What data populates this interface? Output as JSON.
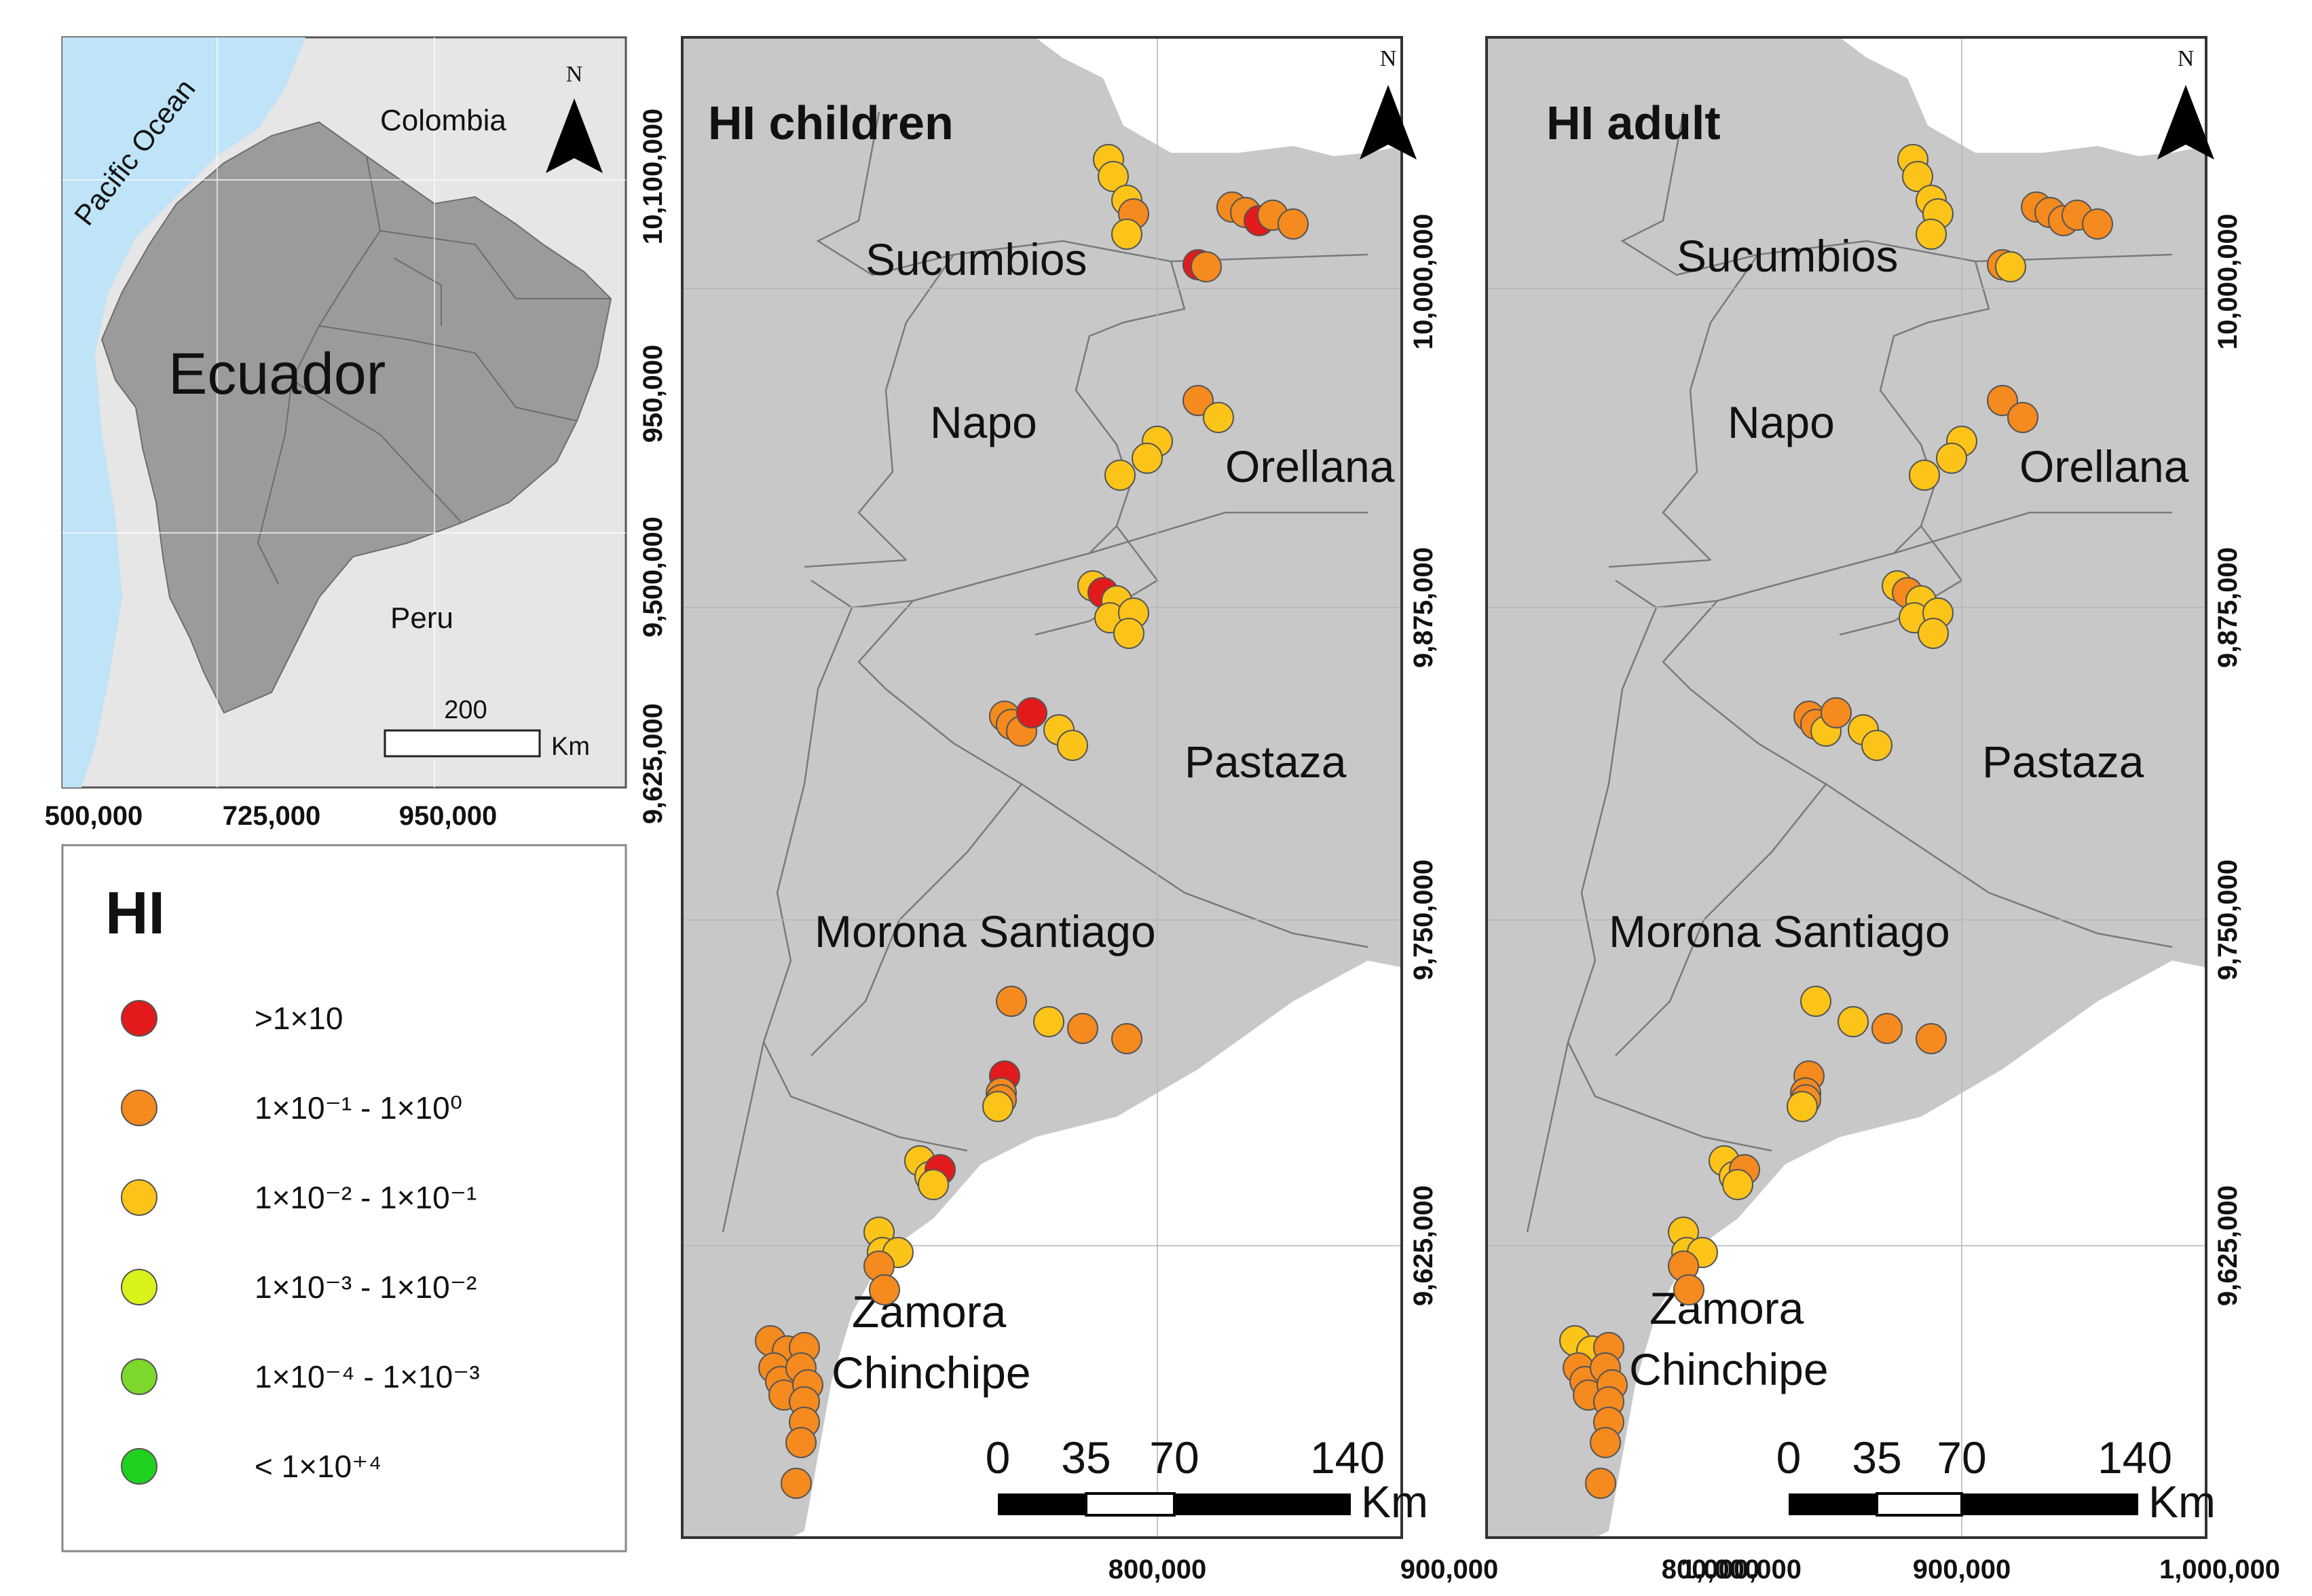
{
  "colors": {
    "ocean": "#bfe3f7",
    "land_light": "#e6e6e6",
    "land_ecuador": "#9b9b9b",
    "map_fill": "#c8c8c8",
    "red": "#e31a1c",
    "orange": "#f58a1f",
    "yellow": "#fcc419",
    "yellowgreen": "#d8f21a",
    "lightgreen": "#7cd82a",
    "green": "#1fd11f"
  },
  "icons": {
    "north_arrow": "north-arrow-icon"
  },
  "inset": {
    "ocean_label": "Pacific Ocean",
    "colombia_label": "Colombia",
    "ecuador_label": "Ecuador",
    "peru_label": "Peru",
    "north_letter": "N",
    "scale_value": "200",
    "scale_unit": "Km",
    "x_ticks": [
      "500,000",
      "725,000",
      "950,000"
    ],
    "y_ticks": [
      "10,100,000",
      "950,000",
      "9,500,000",
      "9,625,000"
    ]
  },
  "legend": {
    "title": "HI",
    "items": [
      {
        "label": ">1×10",
        "color": "red"
      },
      {
        "label": "1×10⁻¹ - 1×10⁰",
        "color": "orange"
      },
      {
        "label": "1×10⁻² - 1×10⁻¹",
        "color": "yellow"
      },
      {
        "label": "1×10⁻³ - 1×10⁻²",
        "color": "yellowgreen"
      },
      {
        "label": "1×10⁻⁴ - 1×10⁻³",
        "color": "lightgreen"
      },
      {
        "label": "< 1×10⁺⁴",
        "color": "green"
      }
    ]
  },
  "provinces": {
    "sucumbios": "Sucumbios",
    "napo": "Napo",
    "orellana": "Orellana",
    "pastaza": "Pastaza",
    "morona": "Morona Santiago",
    "zamora1": "Zamora",
    "zamora2": "Chinchipe"
  },
  "maps": [
    {
      "title": "HI children",
      "north_letter": "N",
      "scale_labels": [
        "0",
        "35",
        "70",
        "140"
      ],
      "scale_unit": "Km",
      "x_ticks": [
        "800,000",
        "900,000",
        "1,000,000"
      ],
      "y_ticks": [
        "10,000,000",
        "9,875,000",
        "9,750,000",
        "9,625,000"
      ],
      "points": [
        "yellow",
        "yellow",
        "yellow",
        "orange",
        "yellow",
        "orange",
        "orange",
        "red",
        "orange",
        "orange",
        "red",
        "orange",
        "orange",
        "yellow",
        "yellow",
        "yellow",
        "yellow",
        "yellow",
        "red",
        "yellow",
        "yellow",
        "yellow",
        "yellow",
        "orange",
        "orange",
        "orange",
        "red",
        "yellow",
        "yellow",
        "orange",
        "yellow",
        "orange",
        "orange",
        "red",
        "orange",
        "orange",
        "yellow",
        "yellow",
        "yellow",
        "red",
        "yellow",
        "yellow",
        "yellow",
        "yellow",
        "orange",
        "orange",
        "orange",
        "orange",
        "orange",
        "orange",
        "orange",
        "orange",
        "orange",
        "orange",
        "orange",
        "orange",
        "orange",
        "orange"
      ]
    },
    {
      "title": "HI adult",
      "north_letter": "N",
      "scale_labels": [
        "0",
        "35",
        "70",
        "140"
      ],
      "scale_unit": "Km",
      "x_ticks": [
        "800,000",
        "900,000",
        "1,000,000"
      ],
      "y_ticks": [
        "10,000,000",
        "9,875,000",
        "9,750,000",
        "9,625,000"
      ],
      "points": [
        "yellow",
        "yellow",
        "yellow",
        "yellow",
        "yellow",
        "orange",
        "orange",
        "orange",
        "orange",
        "orange",
        "orange",
        "yellow",
        "orange",
        "orange",
        "yellow",
        "yellow",
        "yellow",
        "yellow",
        "orange",
        "yellow",
        "yellow",
        "yellow",
        "yellow",
        "orange",
        "orange",
        "yellow",
        "orange",
        "yellow",
        "yellow",
        "yellow",
        "yellow",
        "orange",
        "orange",
        "orange",
        "orange",
        "orange",
        "yellow",
        "yellow",
        "yellow",
        "orange",
        "yellow",
        "yellow",
        "yellow",
        "yellow",
        "orange",
        "orange",
        "yellow",
        "yellow",
        "orange",
        "orange",
        "orange",
        "orange",
        "orange",
        "orange",
        "orange",
        "orange",
        "orange",
        "orange"
      ]
    }
  ]
}
